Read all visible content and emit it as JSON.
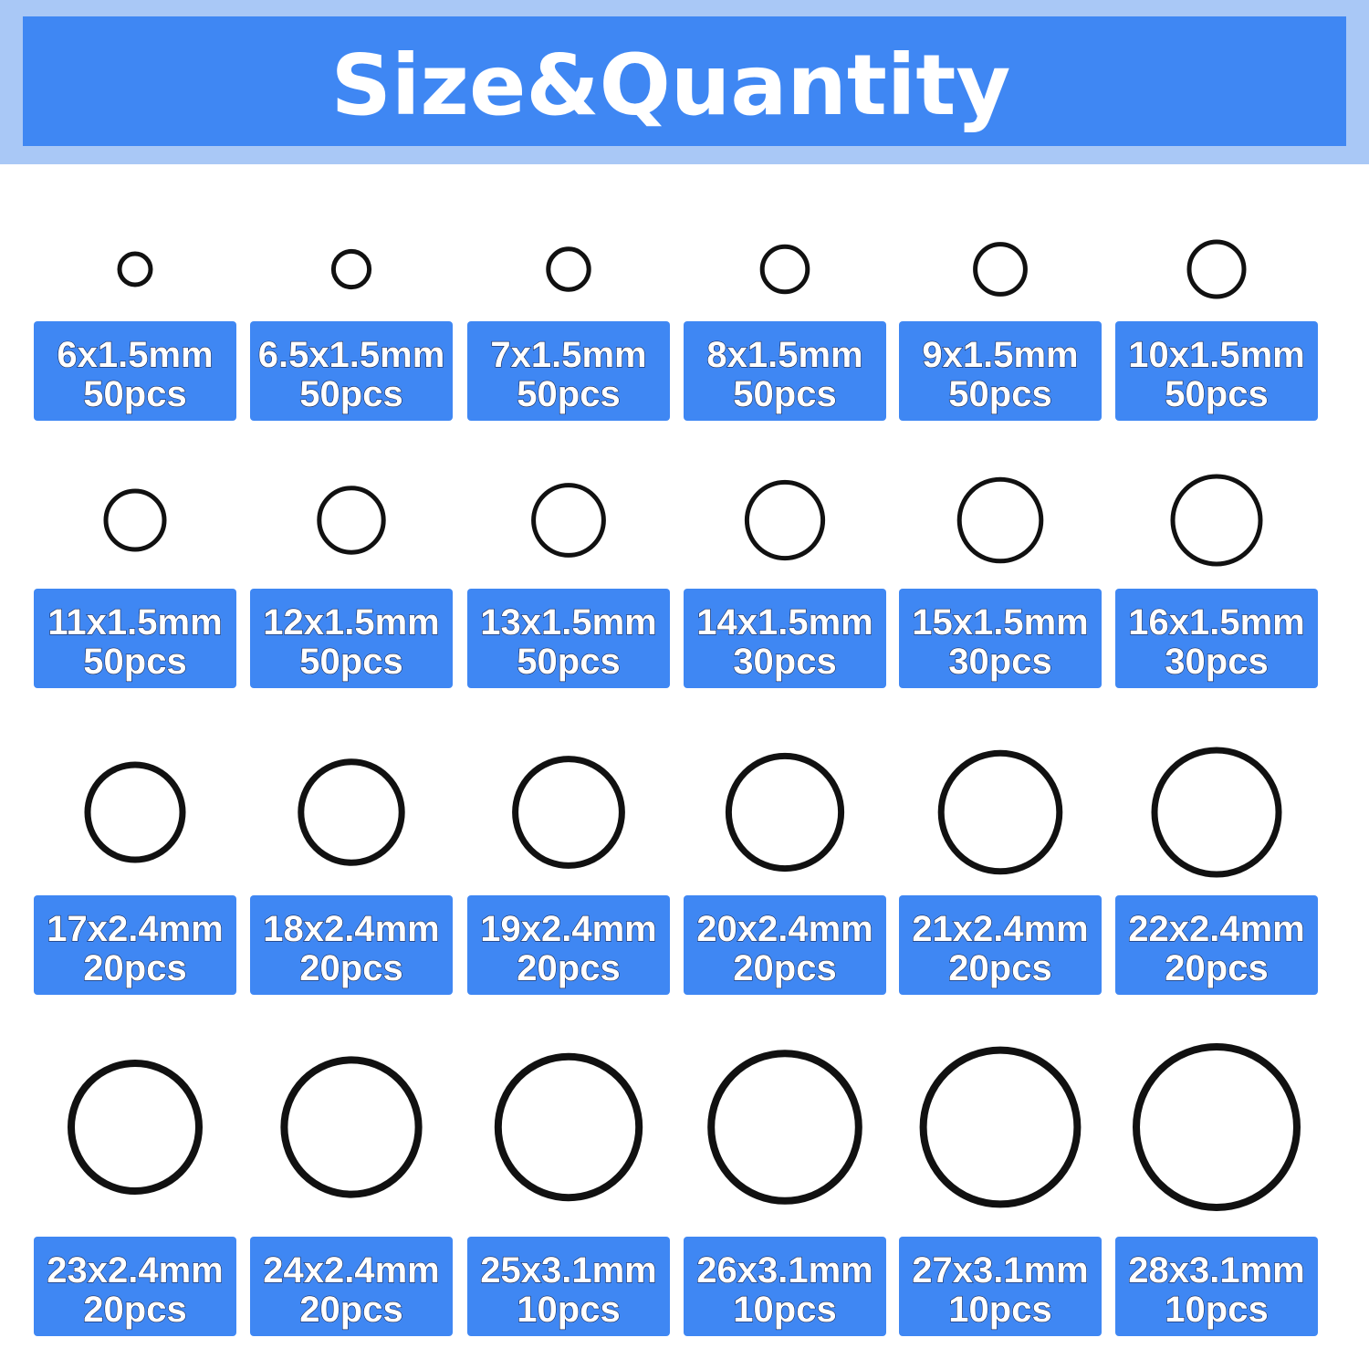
{
  "header": {
    "title": "Size&Quantity"
  },
  "items": [
    {
      "size": "6x1.5mm",
      "quantity": "50pcs"
    },
    {
      "size": "6.5x1.5mm",
      "quantity": "50pcs"
    },
    {
      "size": "7x1.5mm",
      "quantity": "50pcs"
    },
    {
      "size": "8x1.5mm",
      "quantity": "50pcs"
    },
    {
      "size": "9x1.5mm",
      "quantity": "50pcs"
    },
    {
      "size": "10x1.5mm",
      "quantity": "50pcs"
    },
    {
      "size": "11x1.5mm",
      "quantity": "50pcs"
    },
    {
      "size": "12x1.5mm",
      "quantity": "50pcs"
    },
    {
      "size": "13x1.5mm",
      "quantity": "50pcs"
    },
    {
      "size": "14x1.5mm",
      "quantity": "30pcs"
    },
    {
      "size": "15x1.5mm",
      "quantity": "30pcs"
    },
    {
      "size": "16x1.5mm",
      "quantity": "30pcs"
    },
    {
      "size": "17x2.4mm",
      "quantity": "20pcs"
    },
    {
      "size": "18x2.4mm",
      "quantity": "20pcs"
    },
    {
      "size": "19x2.4mm",
      "quantity": "20pcs"
    },
    {
      "size": "20x2.4mm",
      "quantity": "20pcs"
    },
    {
      "size": "21x2.4mm",
      "quantity": "20pcs"
    },
    {
      "size": "22x2.4mm",
      "quantity": "20pcs"
    },
    {
      "size": "23x2.4mm",
      "quantity": "20pcs"
    },
    {
      "size": "24x2.4mm",
      "quantity": "20pcs"
    },
    {
      "size": "25x3.1mm",
      "quantity": "10pcs"
    },
    {
      "size": "26x3.1mm",
      "quantity": "10pcs"
    },
    {
      "size": "27x3.1mm",
      "quantity": "10pcs"
    },
    {
      "size": "28x3.1mm",
      "quantity": "10pcs"
    }
  ]
}
